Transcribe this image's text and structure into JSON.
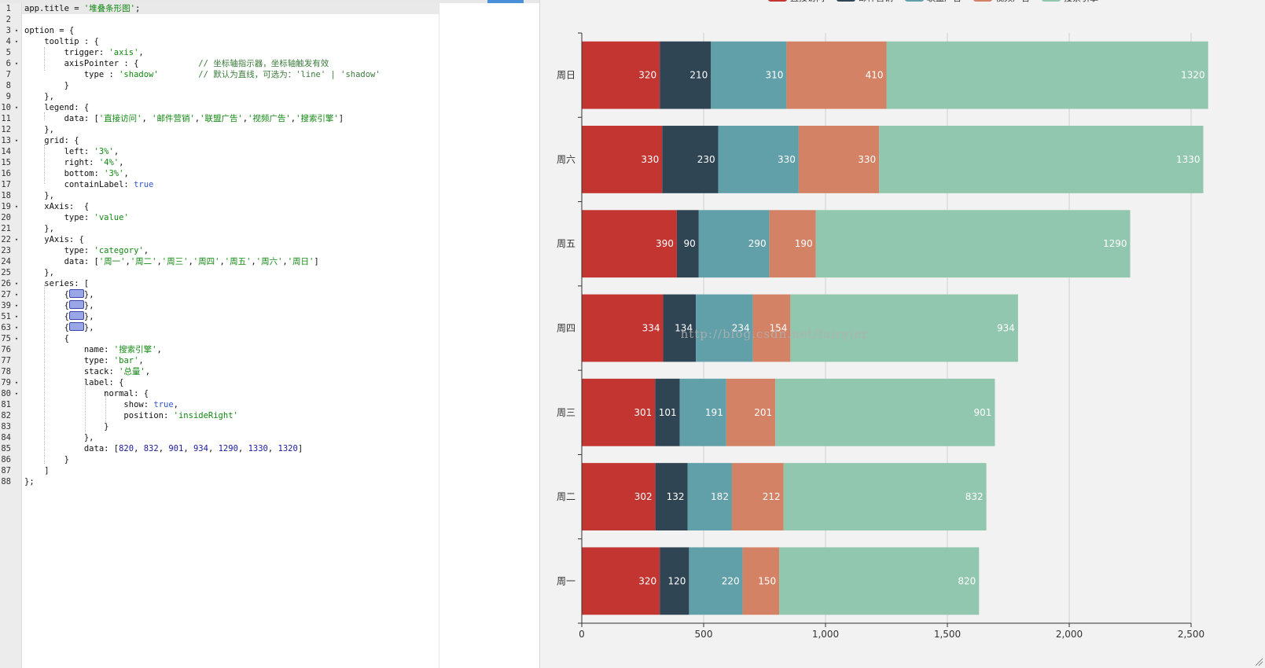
{
  "editor": {
    "lines": [
      {
        "num": "1",
        "fold": false,
        "html": "app.title = <span class='s'>'堆叠条形图'</span>;"
      },
      {
        "num": "2",
        "fold": false,
        "html": ""
      },
      {
        "num": "3",
        "fold": true,
        "html": "option = {"
      },
      {
        "num": "4",
        "fold": true,
        "html": "    tooltip : {"
      },
      {
        "num": "5",
        "fold": false,
        "html": "        trigger: <span class='s'>'axis'</span>,"
      },
      {
        "num": "6",
        "fold": true,
        "html": "        axisPointer : {            <span class='c'>// 坐标轴指示器，坐标轴触发有效</span>"
      },
      {
        "num": "7",
        "fold": false,
        "html": "            type : <span class='s'>'shadow'</span>        <span class='c'>// 默认为直线，可选为：'line' | 'shadow'</span>"
      },
      {
        "num": "8",
        "fold": false,
        "html": "        }"
      },
      {
        "num": "9",
        "fold": false,
        "html": "    },"
      },
      {
        "num": "10",
        "fold": true,
        "html": "    legend: {"
      },
      {
        "num": "11",
        "fold": false,
        "html": "        data: [<span class='s'>'直接访问'</span>, <span class='s'>'邮件营销'</span>,<span class='s'>'联盟广告'</span>,<span class='s'>'视频广告'</span>,<span class='s'>'搜索引擎'</span>]"
      },
      {
        "num": "12",
        "fold": false,
        "html": "    },"
      },
      {
        "num": "13",
        "fold": true,
        "html": "    grid: {"
      },
      {
        "num": "14",
        "fold": false,
        "html": "        left: <span class='s'>'3%'</span>,"
      },
      {
        "num": "15",
        "fold": false,
        "html": "        right: <span class='s'>'4%'</span>,"
      },
      {
        "num": "16",
        "fold": false,
        "html": "        bottom: <span class='s'>'3%'</span>,"
      },
      {
        "num": "17",
        "fold": false,
        "html": "        containLabel: <span class='k'>true</span>"
      },
      {
        "num": "18",
        "fold": false,
        "html": "    },"
      },
      {
        "num": "19",
        "fold": true,
        "html": "    xAxis:  {"
      },
      {
        "num": "20",
        "fold": false,
        "html": "        type: <span class='s'>'value'</span>"
      },
      {
        "num": "21",
        "fold": false,
        "html": "    },"
      },
      {
        "num": "22",
        "fold": true,
        "html": "    yAxis: {"
      },
      {
        "num": "23",
        "fold": false,
        "html": "        type: <span class='s'>'category'</span>,"
      },
      {
        "num": "24",
        "fold": false,
        "html": "        data: [<span class='s'>'周一'</span>,<span class='s'>'周二'</span>,<span class='s'>'周三'</span>,<span class='s'>'周四'</span>,<span class='s'>'周五'</span>,<span class='s'>'周六'</span>,<span class='s'>'周日'</span>]"
      },
      {
        "num": "25",
        "fold": false,
        "html": "    },"
      },
      {
        "num": "26",
        "fold": true,
        "html": "    series: ["
      },
      {
        "num": "27",
        "fold": true,
        "html": "        {<span class='fb'></span>},"
      },
      {
        "num": "39",
        "fold": true,
        "html": "        {<span class='fb'></span>},"
      },
      {
        "num": "51",
        "fold": true,
        "html": "        {<span class='fb'></span>},"
      },
      {
        "num": "63",
        "fold": true,
        "html": "        {<span class='fb'></span>},"
      },
      {
        "num": "75",
        "fold": true,
        "html": "        {"
      },
      {
        "num": "76",
        "fold": false,
        "html": "            name: <span class='s'>'搜索引擎'</span>,"
      },
      {
        "num": "77",
        "fold": false,
        "html": "            type: <span class='s'>'bar'</span>,"
      },
      {
        "num": "78",
        "fold": false,
        "html": "            stack: <span class='s'>'总量'</span>,"
      },
      {
        "num": "79",
        "fold": true,
        "html": "            label: {"
      },
      {
        "num": "80",
        "fold": true,
        "html": "                normal: {"
      },
      {
        "num": "81",
        "fold": false,
        "html": "                    show: <span class='k'>true</span>,"
      },
      {
        "num": "82",
        "fold": false,
        "html": "                    position: <span class='s'>'insideRight'</span>"
      },
      {
        "num": "83",
        "fold": false,
        "html": "                }"
      },
      {
        "num": "84",
        "fold": false,
        "html": "            },"
      },
      {
        "num": "85",
        "fold": false,
        "html": "            data: [<span class='n'>820</span>, <span class='n'>832</span>, <span class='n'>901</span>, <span class='n'>934</span>, <span class='n'>1290</span>, <span class='n'>1330</span>, <span class='n'>1320</span>]"
      },
      {
        "num": "86",
        "fold": false,
        "html": "        }"
      },
      {
        "num": "87",
        "fold": false,
        "html": "    ]"
      },
      {
        "num": "88",
        "fold": false,
        "html": "};"
      }
    ]
  },
  "chart_data": {
    "type": "bar",
    "orientation": "horizontal",
    "stacked": true,
    "categories": [
      "周一",
      "周二",
      "周三",
      "周四",
      "周五",
      "周六",
      "周日"
    ],
    "series": [
      {
        "name": "直接访问",
        "color": "#c23531",
        "values": [
          320,
          302,
          301,
          334,
          390,
          330,
          320
        ]
      },
      {
        "name": "邮件营销",
        "color": "#2f4554",
        "values": [
          120,
          132,
          101,
          134,
          90,
          230,
          210
        ]
      },
      {
        "name": "联盟广告",
        "color": "#61a0a8",
        "values": [
          220,
          182,
          191,
          234,
          290,
          330,
          310
        ]
      },
      {
        "name": "视频广告",
        "color": "#d48265",
        "values": [
          150,
          212,
          201,
          154,
          190,
          330,
          410
        ]
      },
      {
        "name": "搜索引擎",
        "color": "#91c7ae",
        "values": [
          820,
          832,
          901,
          934,
          1290,
          1330,
          1320
        ]
      }
    ],
    "xlim": [
      0,
      2500
    ],
    "xticks": [
      0,
      500,
      1000,
      1500,
      2000,
      2500
    ],
    "xtick_labels": [
      "0",
      "500",
      "1,000",
      "1,500",
      "2,000",
      "2,500"
    ],
    "grid": true,
    "legend_position": "top",
    "watermark": "http://blog.csdn.net/fairyier"
  }
}
